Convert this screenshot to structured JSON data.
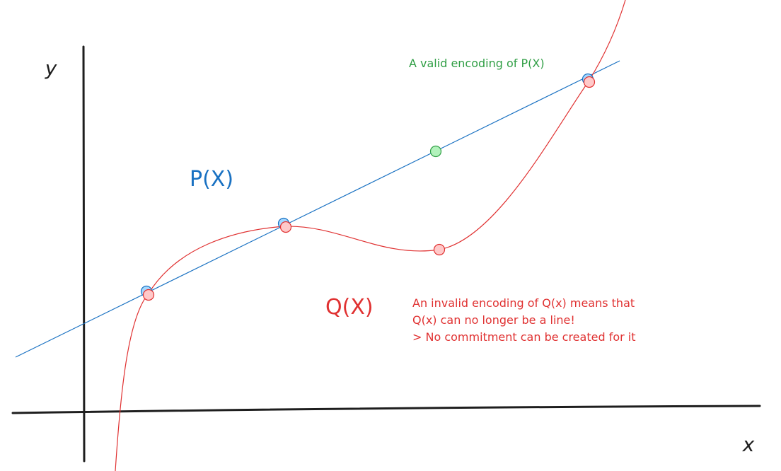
{
  "axes": {
    "y_label": "y",
    "x_label": "x"
  },
  "curves": {
    "p_label": "P(X)",
    "q_label": "Q(X)"
  },
  "annotations": {
    "valid": "A valid encoding of P(X)",
    "invalid": [
      "An invalid encoding of Q(x) means that",
      "Q(x) can no longer be a line!",
      "> No commitment can be created for it"
    ]
  }
}
